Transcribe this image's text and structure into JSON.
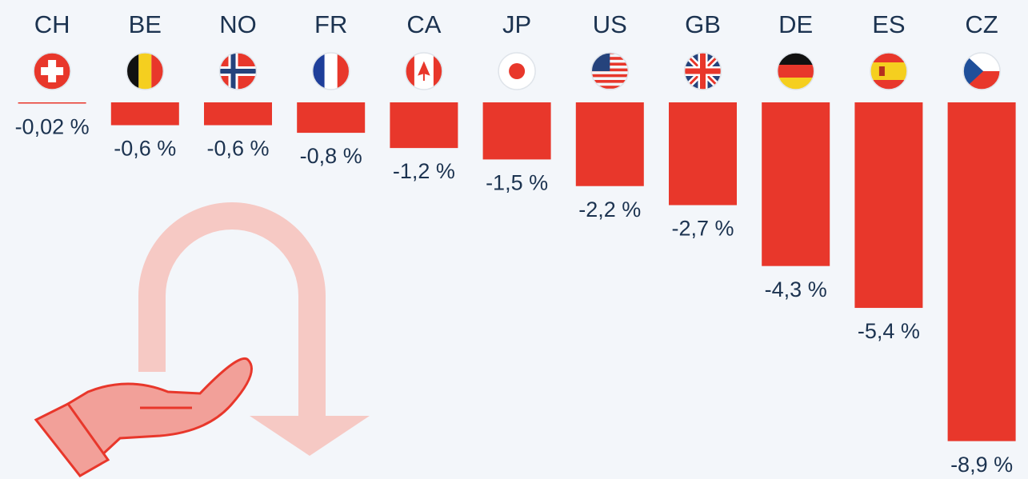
{
  "chart_data": {
    "type": "bar",
    "categories": [
      "CH",
      "BE",
      "NO",
      "FR",
      "CA",
      "JP",
      "US",
      "GB",
      "DE",
      "ES",
      "CZ"
    ],
    "values": [
      -0.02,
      -0.6,
      -0.6,
      -0.8,
      -1.2,
      -1.5,
      -2.2,
      -2.7,
      -4.3,
      -5.4,
      -8.9
    ],
    "value_labels": [
      "-0,02 %",
      "-0,6 %",
      "-0,6 %",
      "-0,8 %",
      "-1,2 %",
      "-1,5 %",
      "-2,2 %",
      "-2,7 %",
      "-4,3 %",
      "-5,4 %",
      "-8,9 %"
    ],
    "color": "#e8372b"
  }
}
